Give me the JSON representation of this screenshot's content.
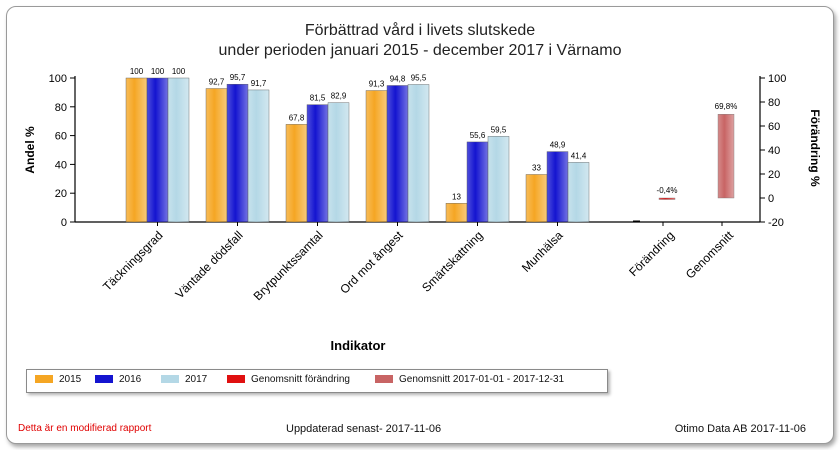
{
  "chart_data": {
    "type": "bar",
    "title_line1": "Förbättrad vård i livets slutskede",
    "title_line2": "under perioden januari 2015 - december 2017 i  Värnamo",
    "xlabel": "Indikator",
    "ylabel_left": "Andel %",
    "ylabel_right": "Förändring %",
    "ylim_left": [
      0,
      100
    ],
    "ylim_right": [
      -20,
      100
    ],
    "left_ticks": [
      0,
      20,
      40,
      60,
      80,
      100
    ],
    "right_ticks": [
      -20,
      0,
      20,
      40,
      60,
      80,
      100
    ],
    "categories": [
      "Täckningsgrad",
      "Väntade dödsfall",
      "Brytpunktssamtal",
      "Ord mot ångest",
      "Smärtskattning",
      "Munhälsa"
    ],
    "series": [
      {
        "name": "2015",
        "color": "#f5a623",
        "values": [
          100,
          92.7,
          67.8,
          91.3,
          13,
          33
        ],
        "labels": [
          "100",
          "92,7",
          "67,8",
          "91,3",
          "13",
          "33"
        ]
      },
      {
        "name": "2016",
        "color": "#1414d0",
        "values": [
          100,
          95.7,
          81.5,
          94.8,
          55.6,
          48.9
        ],
        "labels": [
          "100",
          "95,7",
          "81,5",
          "94,8",
          "55,6",
          "48,9"
        ]
      },
      {
        "name": "2017",
        "color": "#b4d8e6",
        "values": [
          100,
          91.7,
          82.9,
          95.5,
          59.5,
          41.4
        ],
        "labels": [
          "100",
          "91,7",
          "82,9",
          "95,5",
          "59,5",
          "41,4"
        ]
      }
    ],
    "change_categories": [
      "Förändring",
      "Genomsnitt"
    ],
    "change_series": [
      {
        "name": "Genomsnitt förändring",
        "color": "#e01010",
        "value": -0.4,
        "label": "-0,4%"
      },
      {
        "name": "Genomsnitt 2017-01-01 - 2017-12-31",
        "color": "#c86464",
        "value": 69.8,
        "label": "69,8%"
      }
    ],
    "grid": false,
    "legend_position": "bottom-left"
  },
  "footer": {
    "left": "Detta är en modifierad rapport",
    "center": "Uppdaterad senast- 2017-11-06",
    "right": "Otimo Data AB 2017-11-06"
  }
}
